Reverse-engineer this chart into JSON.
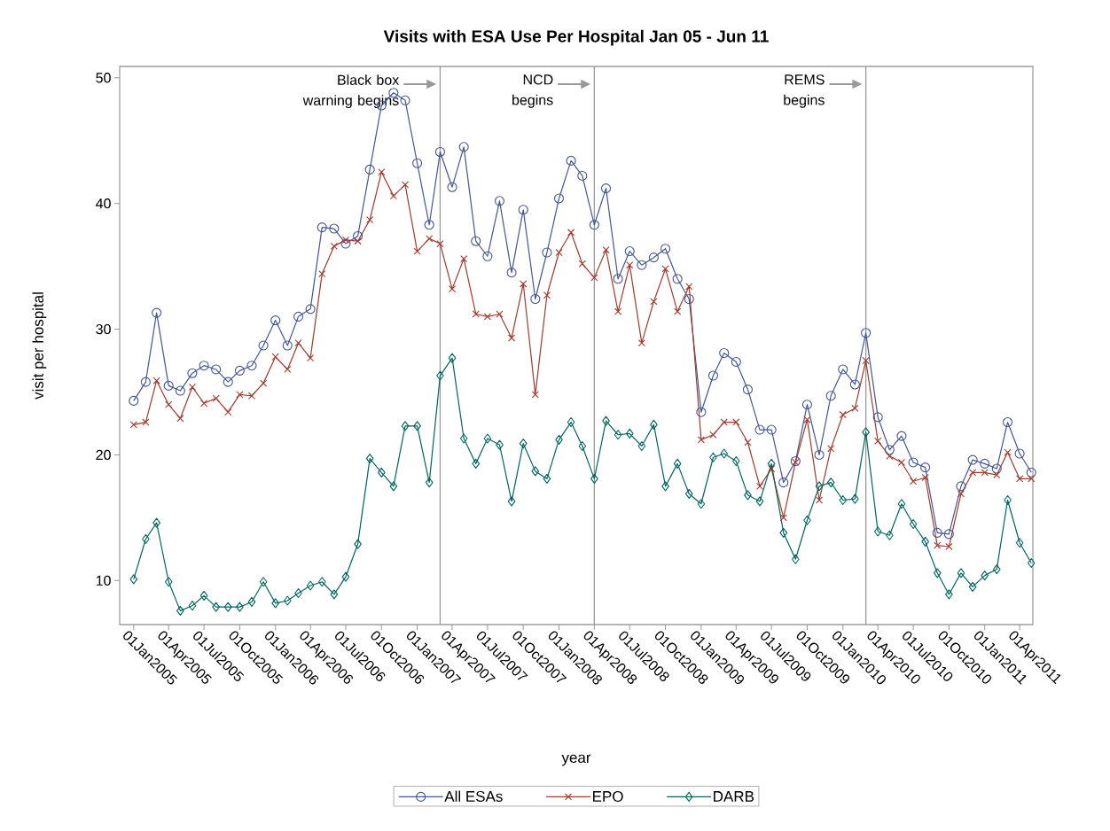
{
  "chart_data": {
    "type": "line",
    "title": "Visits with ESA Use Per Hospital Jan 05 - Jun 11",
    "xlabel": "year",
    "ylabel": "visit per hospital",
    "x": [
      "2005-01",
      "2005-02",
      "2005-03",
      "2005-04",
      "2005-05",
      "2005-06",
      "2005-07",
      "2005-08",
      "2005-09",
      "2005-10",
      "2005-11",
      "2005-12",
      "2006-01",
      "2006-02",
      "2006-03",
      "2006-04",
      "2006-05",
      "2006-06",
      "2006-07",
      "2006-08",
      "2006-09",
      "2006-10",
      "2006-11",
      "2006-12",
      "2007-01",
      "2007-02",
      "2007-03",
      "2007-04",
      "2007-05",
      "2007-06",
      "2007-07",
      "2007-08",
      "2007-09",
      "2007-10",
      "2007-11",
      "2007-12",
      "2008-01",
      "2008-02",
      "2008-03",
      "2008-04",
      "2008-05",
      "2008-06",
      "2008-07",
      "2008-08",
      "2008-09",
      "2008-10",
      "2008-11",
      "2008-12",
      "2009-01",
      "2009-02",
      "2009-03",
      "2009-04",
      "2009-05",
      "2009-06",
      "2009-07",
      "2009-08",
      "2009-09",
      "2009-10",
      "2009-11",
      "2009-12",
      "2010-01",
      "2010-02",
      "2010-03",
      "2010-04",
      "2010-05",
      "2010-06",
      "2010-07",
      "2010-08",
      "2010-09",
      "2010-10",
      "2010-11",
      "2010-12",
      "2011-01",
      "2011-02",
      "2011-03",
      "2011-04",
      "2011-05"
    ],
    "series": [
      {
        "name": "All ESAs",
        "color": "#445694",
        "marker": "circle",
        "values": [
          24.3,
          25.8,
          31.3,
          25.5,
          25.1,
          26.5,
          27.1,
          26.8,
          25.8,
          26.7,
          27.1,
          28.7,
          30.7,
          28.7,
          31.0,
          31.6,
          38.1,
          38.0,
          36.8,
          37.4,
          42.7,
          47.8,
          48.8,
          48.2,
          43.2,
          38.3,
          44.1,
          41.3,
          44.5,
          37.0,
          35.8,
          40.2,
          34.5,
          39.5,
          32.4,
          36.1,
          40.4,
          43.4,
          42.2,
          38.3,
          41.2,
          34.0,
          36.2,
          35.1,
          35.7,
          36.4,
          34.0,
          32.4,
          23.4,
          26.3,
          28.1,
          27.4,
          25.2,
          22.0,
          22.0,
          17.8,
          19.5,
          24.0,
          20.0,
          24.7,
          26.8,
          25.6,
          29.7,
          23.0,
          20.4,
          21.5,
          19.4,
          19.0,
          13.8,
          13.7,
          17.5,
          19.6,
          19.3,
          18.9,
          22.6,
          20.1,
          18.6
        ]
      },
      {
        "name": "EPO",
        "color": "#a23a2e",
        "marker": "cross",
        "values": [
          22.4,
          22.6,
          25.9,
          24.0,
          22.9,
          25.4,
          24.1,
          24.5,
          23.4,
          24.8,
          24.7,
          25.7,
          27.8,
          26.8,
          28.9,
          27.7,
          34.4,
          36.6,
          37.1,
          37.0,
          38.7,
          42.5,
          40.6,
          41.5,
          36.2,
          37.2,
          36.8,
          33.2,
          35.6,
          31.2,
          31.0,
          31.2,
          29.3,
          33.6,
          24.8,
          32.7,
          36.1,
          37.7,
          35.2,
          34.1,
          36.3,
          31.4,
          35.1,
          28.9,
          32.2,
          34.8,
          31.4,
          33.4,
          21.2,
          21.6,
          22.6,
          22.6,
          21.0,
          17.5,
          18.9,
          15.0,
          19.4,
          22.8,
          16.4,
          20.5,
          23.2,
          23.7,
          27.5,
          21.1,
          19.9,
          19.4,
          17.9,
          18.2,
          12.8,
          12.7,
          16.9,
          18.6,
          18.6,
          18.4,
          20.2,
          18.1,
          18.1
        ]
      },
      {
        "name": "DARB",
        "color": "#01665e",
        "marker": "diamond",
        "values": [
          10.1,
          13.3,
          14.6,
          9.9,
          7.6,
          8.0,
          8.8,
          7.9,
          7.9,
          7.9,
          8.3,
          9.9,
          8.2,
          8.4,
          9.0,
          9.6,
          9.9,
          8.9,
          10.3,
          12.9,
          19.7,
          18.6,
          17.5,
          22.3,
          22.3,
          17.8,
          26.3,
          27.7,
          21.3,
          19.3,
          21.3,
          20.8,
          16.3,
          20.9,
          18.7,
          18.1,
          21.2,
          22.6,
          20.7,
          18.1,
          22.7,
          21.6,
          21.7,
          20.7,
          22.4,
          17.5,
          19.3,
          16.9,
          16.1,
          19.8,
          20.1,
          19.5,
          16.8,
          16.3,
          19.3,
          13.8,
          11.7,
          14.8,
          17.5,
          17.8,
          16.4,
          16.5,
          21.8,
          13.9,
          13.6,
          16.1,
          14.5,
          13.1,
          10.6,
          8.9,
          10.6,
          9.5,
          10.4,
          10.9,
          16.4,
          13.0,
          11.4
        ]
      }
    ],
    "xlim": [
      "2004-11-26",
      "2011-05-05"
    ],
    "xticks": [
      {
        "value": "2005-01",
        "label": "01Jan2005"
      },
      {
        "value": "2005-04",
        "label": "01Apr2005"
      },
      {
        "value": "2005-07",
        "label": "01Jul2005"
      },
      {
        "value": "2005-10",
        "label": "01Oct2005"
      },
      {
        "value": "2006-01",
        "label": "01Jan2006"
      },
      {
        "value": "2006-04",
        "label": "01Apr2006"
      },
      {
        "value": "2006-07",
        "label": "01Jul2006"
      },
      {
        "value": "2006-10",
        "label": "01Oct2006"
      },
      {
        "value": "2007-01",
        "label": "01Jan2007"
      },
      {
        "value": "2007-04",
        "label": "01Apr2007"
      },
      {
        "value": "2007-07",
        "label": "01Jul2007"
      },
      {
        "value": "2007-10",
        "label": "01Oct2007"
      },
      {
        "value": "2008-01",
        "label": "01Jan2008"
      },
      {
        "value": "2008-04",
        "label": "01Apr2008"
      },
      {
        "value": "2008-07",
        "label": "01Jul2008"
      },
      {
        "value": "2008-10",
        "label": "01Oct2008"
      },
      {
        "value": "2009-01",
        "label": "01Jan2009"
      },
      {
        "value": "2009-04",
        "label": "01Apr2009"
      },
      {
        "value": "2009-07",
        "label": "01Jul2009"
      },
      {
        "value": "2009-10",
        "label": "01Oct2009"
      },
      {
        "value": "2010-01",
        "label": "01Jan2010"
      },
      {
        "value": "2010-04",
        "label": "01Apr2010"
      },
      {
        "value": "2010-07",
        "label": "01Jul2010"
      },
      {
        "value": "2010-10",
        "label": "01Oct2010"
      },
      {
        "value": "2011-01",
        "label": "01Jan2011"
      },
      {
        "value": "2011-04",
        "label": "01Apr2011"
      }
    ],
    "ylim": [
      6.5,
      50.9
    ],
    "yticks": [
      10,
      20,
      30,
      40,
      50
    ],
    "ref_lines": [
      {
        "axis": "x",
        "value": "2007-03",
        "label": "Black box warning begins",
        "color": "#999999"
      },
      {
        "axis": "x",
        "value": "2008-04",
        "label": "NCD begins",
        "color": "#999999"
      },
      {
        "axis": "x",
        "value": "2010-03",
        "label": "REMS begins",
        "color": "#999999"
      }
    ],
    "legend": "bottom",
    "grid": false,
    "line_style": "solid"
  }
}
